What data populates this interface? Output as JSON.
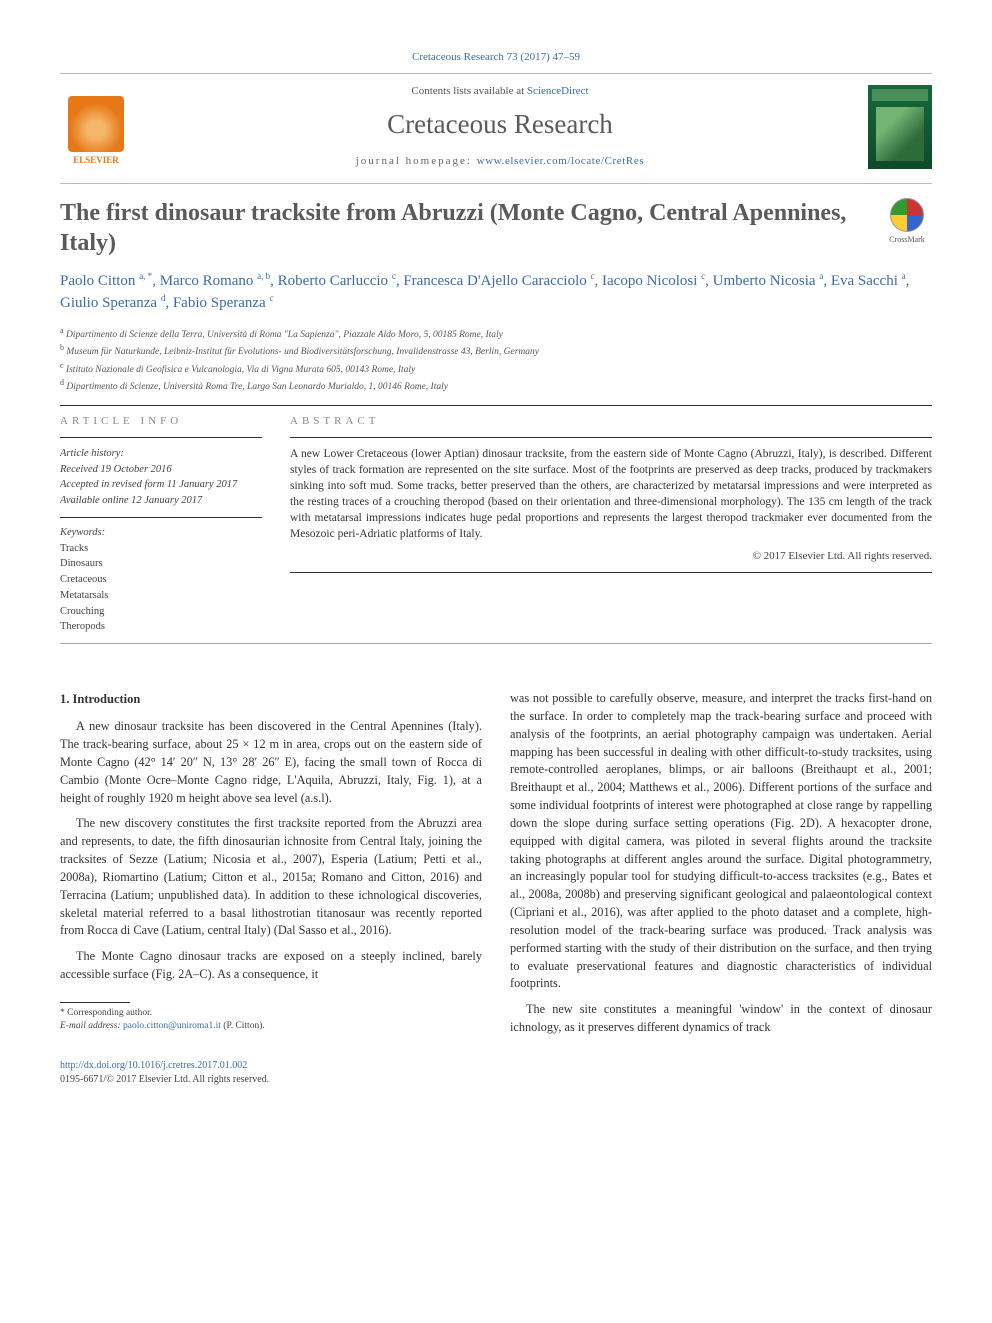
{
  "citation": "Cretaceous Research 73 (2017) 47–59",
  "header": {
    "contents_prefix": "Contents lists available at ",
    "contents_link": "ScienceDirect",
    "journal": "Cretaceous Research",
    "homepage_prefix": "journal homepage: ",
    "homepage_url": "www.elsevier.com/locate/CretRes",
    "logo_label": "ELSEVIER",
    "cover_label": "CRETACEOUS"
  },
  "crossmark_label": "CrossMark",
  "title": "The first dinosaur tracksite from Abruzzi (Monte Cagno, Central Apennines, Italy)",
  "authors_html": "Paolo Citton <sup>a, *</sup>, Marco Romano <sup>a, b</sup>, Roberto Carluccio <sup>c</sup>, Francesca D'Ajello Caracciolo <sup>c</sup>, Iacopo Nicolosi <sup>c</sup>, Umberto Nicosia <sup>a</sup>, Eva Sacchi <sup>a</sup>, Giulio Speranza <sup>d</sup>, Fabio Speranza <sup>c</sup>",
  "affiliations": [
    {
      "sup": "a",
      "text": "Dipartimento di Scienze della Terra, Università di Roma \"La Sapienza\", Piazzale Aldo Moro, 5, 00185 Rome, Italy"
    },
    {
      "sup": "b",
      "text": "Museum für Naturkunde, Leibniz-Institut für Evolutions- und Biodiversitätsforschung, Invalidenstrasse 43, Berlin, Germany"
    },
    {
      "sup": "c",
      "text": "Istituto Nazionale di Geofisica e Vulcanologia, Via di Vigna Murata 605, 00143 Rome, Italy"
    },
    {
      "sup": "d",
      "text": "Dipartimento di Scienze, Università Roma Tre, Largo San Leonardo Murialdo, 1, 00146 Rome, Italy"
    }
  ],
  "info_left": {
    "head": "ARTICLE INFO",
    "history_label": "Article history:",
    "history": [
      "Received 19 October 2016",
      "Accepted in revised form 11 January 2017",
      "Available online 12 January 2017"
    ],
    "keywords_label": "Keywords:",
    "keywords": [
      "Tracks",
      "Dinosaurs",
      "Cretaceous",
      "Metatarsals",
      "Crouching",
      "Theropods"
    ]
  },
  "abstract_head": "ABSTRACT",
  "abstract": "A new Lower Cretaceous (lower Aptian) dinosaur tracksite, from the eastern side of Monte Cagno (Abruzzi, Italy), is described. Different styles of track formation are represented on the site surface. Most of the footprints are preserved as deep tracks, produced by trackmakers sinking into soft mud. Some tracks, better preserved than the others, are characterized by metatarsal impressions and were interpreted as the resting traces of a crouching theropod (based on their orientation and three-dimensional morphology). The 135 cm length of the track with metatarsal impressions indicates huge pedal proportions and represents the largest theropod trackmaker ever documented from the Mesozoic peri-Adriatic platforms of Italy.",
  "copyright": "© 2017 Elsevier Ltd. All rights reserved.",
  "section1_head": "1. Introduction",
  "col_left": [
    "A new dinosaur tracksite has been discovered in the Central Apennines (Italy). The track-bearing surface, about 25 × 12 m in area, crops out on the eastern side of Monte Cagno (42° 14′ 20″ N, 13° 28′ 26″ E), facing the small town of Rocca di Cambio (Monte Ocre–Monte Cagno ridge, L'Aquila, Abruzzi, Italy, Fig. 1), at a height of roughly 1920 m height above sea level (a.s.l).",
    "The new discovery constitutes the first tracksite reported from the Abruzzi area and represents, to date, the fifth dinosaurian ichnosite from Central Italy, joining the tracksites of Sezze (Latium; Nicosia et al., 2007), Esperia (Latium; Petti et al., 2008a), Riomartino (Latium; Citton et al., 2015a; Romano and Citton, 2016) and Terracina (Latium; unpublished data). In addition to these ichnological discoveries, skeletal material referred to a basal lithostrotian titanosaur was recently reported from Rocca di Cave (Latium, central Italy) (Dal Sasso et al., 2016).",
    "The Monte Cagno dinosaur tracks are exposed on a steeply inclined, barely accessible surface (Fig. 2A–C). As a consequence, it"
  ],
  "col_right": [
    "was not possible to carefully observe, measure, and interpret the tracks first-hand on the surface. In order to completely map the track-bearing surface and proceed with analysis of the footprints, an aerial photography campaign was undertaken. Aerial mapping has been successful in dealing with other difficult-to-study tracksites, using remote-controlled aeroplanes, blimps, or air balloons (Breithaupt et al., 2001; Breithaupt et al., 2004; Matthews et al., 2006). Different portions of the surface and some individual footprints of interest were photographed at close range by rappelling down the slope during surface setting operations (Fig. 2D). A hexacopter drone, equipped with digital camera, was piloted in several flights around the tracksite taking photographs at different angles around the surface. Digital photogrammetry, an increasingly popular tool for studying difficult-to-access tracksites (e.g., Bates et al., 2008a, 2008b) and preserving significant geological and palaeontological context (Cipriani et al., 2016), was after applied to the photo dataset and a complete, high-resolution model of the track-bearing surface was produced. Track analysis was performed starting with the study of their distribution on the surface, and then trying to evaluate preservational features and diagnostic characteristics of individual footprints.",
    "The new site constitutes a meaningful 'window' in the context of dinosaur ichnology, as it preserves different dynamics of track"
  ],
  "footer": {
    "corresponding": "* Corresponding author.",
    "email_label": "E-mail address:",
    "email": "paolo.citton@uniroma1.it",
    "email_who": "(P. Citton).",
    "doi": "http://dx.doi.org/10.1016/j.cretres.2017.01.002",
    "issn_line": "0195-6671/© 2017 Elsevier Ltd. All rights reserved."
  },
  "colors": {
    "link": "#3a6ca8",
    "accent_orange": "#e67817",
    "text": "#333333",
    "muted": "#888888"
  }
}
